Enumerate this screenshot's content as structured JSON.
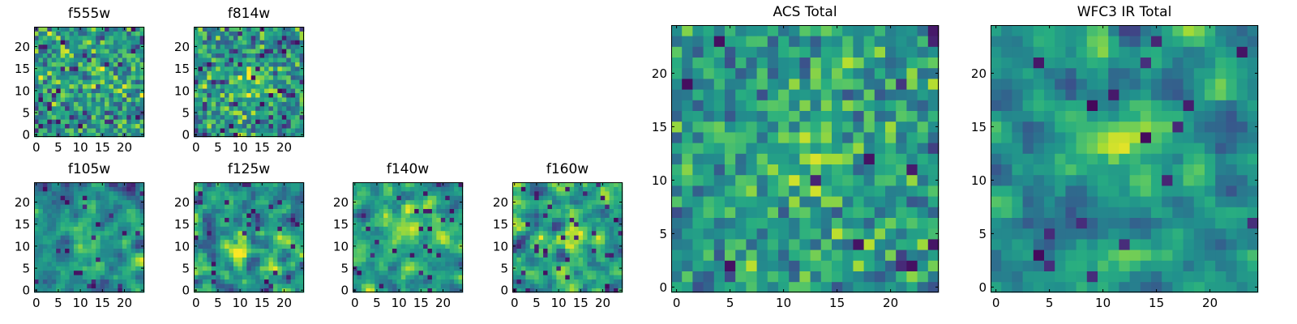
{
  "chart_data": [
    {
      "type": "heatmap",
      "title": "f555w",
      "grid_size": 25,
      "xlim": [
        0,
        24
      ],
      "ylim": [
        0,
        24
      ],
      "x_ticks": [
        0,
        5,
        10,
        15,
        20
      ],
      "y_ticks": [
        0,
        5,
        10,
        15,
        20
      ],
      "origin": "lower",
      "colormap": "viridis",
      "seed": 11,
      "blob_center": [
        13,
        11
      ],
      "blob_strength": 0.15,
      "noise": 0.55,
      "smooth": 0,
      "dark_fraction": 0.06
    },
    {
      "type": "heatmap",
      "title": "f814w",
      "grid_size": 25,
      "xlim": [
        0,
        24
      ],
      "ylim": [
        0,
        24
      ],
      "x_ticks": [
        0,
        5,
        10,
        15,
        20
      ],
      "y_ticks": [
        0,
        5,
        10,
        15,
        20
      ],
      "origin": "lower",
      "colormap": "viridis",
      "seed": 23,
      "blob_center": [
        13,
        12
      ],
      "blob_strength": 0.3,
      "noise": 0.5,
      "smooth": 0,
      "dark_fraction": 0.05
    },
    {
      "type": "heatmap",
      "title": "f105w",
      "grid_size": 25,
      "xlim": [
        0,
        24
      ],
      "ylim": [
        0,
        24
      ],
      "x_ticks": [
        0,
        5,
        10,
        15,
        20
      ],
      "y_ticks": [
        0,
        5,
        10,
        15,
        20
      ],
      "origin": "lower",
      "colormap": "viridis",
      "seed": 37,
      "blob_center": [
        12,
        12
      ],
      "blob_strength": 0.3,
      "noise": 0.5,
      "smooth": 1,
      "dark_fraction": 0.04
    },
    {
      "type": "heatmap",
      "title": "f125w",
      "grid_size": 25,
      "xlim": [
        0,
        24
      ],
      "ylim": [
        0,
        24
      ],
      "x_ticks": [
        0,
        5,
        10,
        15,
        20
      ],
      "y_ticks": [
        0,
        5,
        10,
        15,
        20
      ],
      "origin": "lower",
      "colormap": "viridis",
      "seed": 41,
      "blob_center": [
        10,
        9
      ],
      "blob_strength": 0.35,
      "noise": 0.5,
      "smooth": 1,
      "dark_fraction": 0.04
    },
    {
      "type": "heatmap",
      "title": "f140w",
      "grid_size": 25,
      "xlim": [
        0,
        24
      ],
      "ylim": [
        0,
        24
      ],
      "x_ticks": [
        0,
        5,
        10,
        15,
        20
      ],
      "y_ticks": [
        0,
        5,
        10,
        15,
        20
      ],
      "origin": "lower",
      "colormap": "viridis",
      "seed": 53,
      "blob_center": [
        11,
        14
      ],
      "blob_strength": 0.3,
      "noise": 0.5,
      "smooth": 1,
      "dark_fraction": 0.05
    },
    {
      "type": "heatmap",
      "title": "f160w",
      "grid_size": 25,
      "xlim": [
        0,
        24
      ],
      "ylim": [
        0,
        24
      ],
      "x_ticks": [
        0,
        5,
        10,
        15,
        20
      ],
      "y_ticks": [
        0,
        5,
        10,
        15,
        20
      ],
      "origin": "lower",
      "colormap": "viridis",
      "seed": 67,
      "blob_center": [
        13,
        11
      ],
      "blob_strength": 0.3,
      "noise": 0.5,
      "smooth": 1,
      "dark_fraction": 0.05
    },
    {
      "type": "heatmap",
      "title": "ACS Total",
      "grid_size": 25,
      "xlim": [
        0,
        24
      ],
      "ylim": [
        0,
        24
      ],
      "x_ticks": [
        0,
        5,
        10,
        15,
        20
      ],
      "y_ticks": [
        0,
        5,
        10,
        15,
        20
      ],
      "origin": "lower",
      "colormap": "viridis",
      "seed": 79,
      "blob_center": [
        13,
        12
      ],
      "blob_strength": 0.25,
      "noise": 0.42,
      "smooth": 0,
      "dark_fraction": 0.03
    },
    {
      "type": "heatmap",
      "title": "WFC3 IR Total",
      "grid_size": 25,
      "xlim": [
        0,
        24
      ],
      "ylim": [
        0,
        24
      ],
      "x_ticks": [
        0,
        5,
        10,
        15,
        20
      ],
      "y_ticks": [
        0,
        5,
        10,
        15,
        20
      ],
      "origin": "lower",
      "colormap": "viridis",
      "seed": 97,
      "blob_center": [
        12,
        13
      ],
      "blob_strength": 0.4,
      "noise": 0.38,
      "smooth": 1,
      "dark_fraction": 0.03
    }
  ]
}
